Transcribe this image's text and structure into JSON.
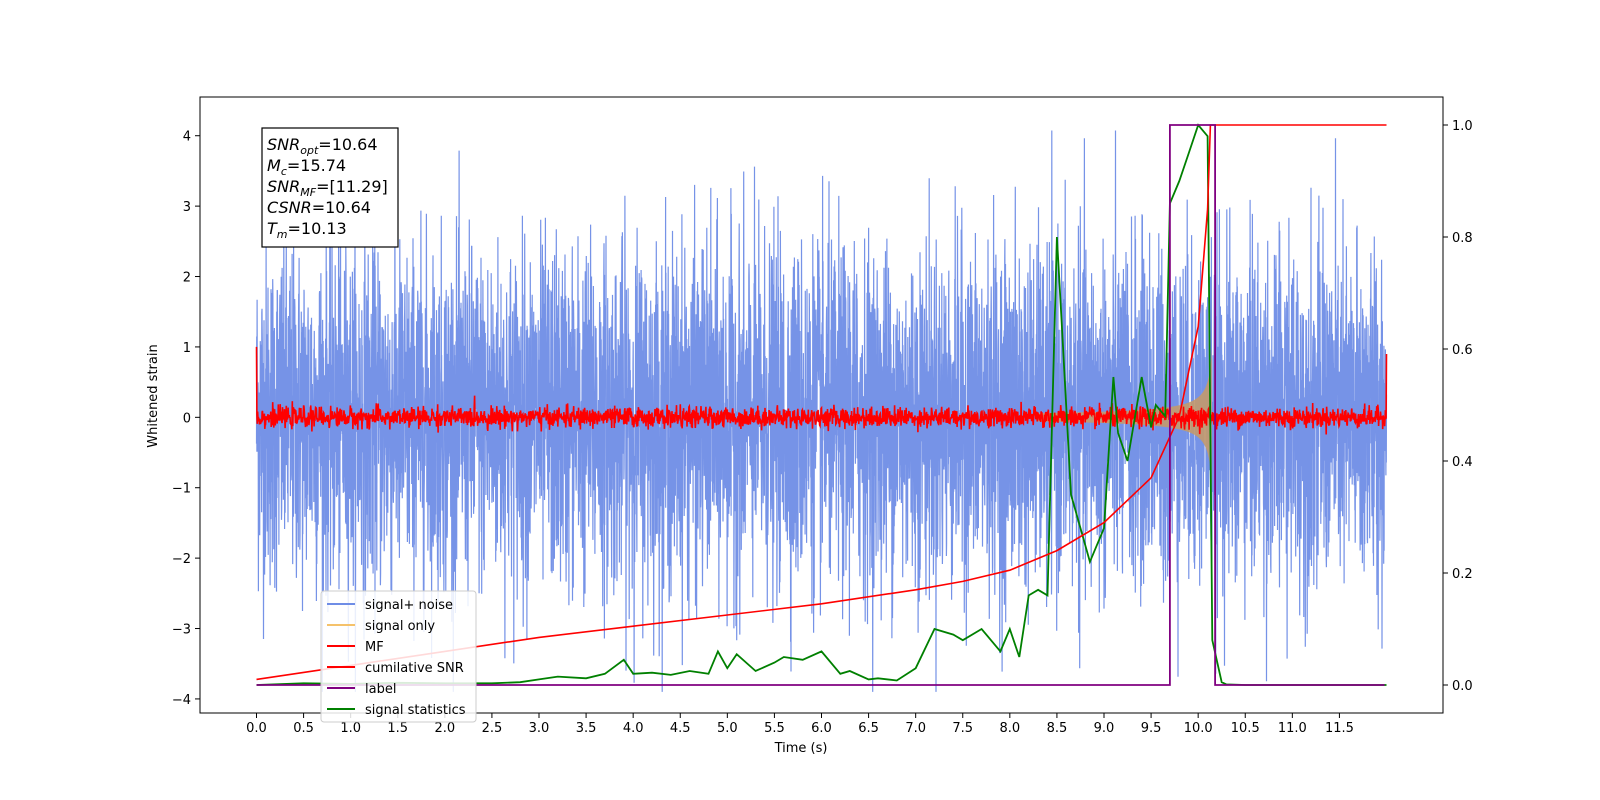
{
  "chart_data": {
    "type": "line",
    "title": "",
    "xlabel": "Time (s)",
    "ylabel": "Whitened strain",
    "xlim": [
      -0.6,
      12.6
    ],
    "ylim_left": [
      -4.2,
      4.55
    ],
    "ylim_right": [
      -0.05,
      1.05
    ],
    "xticks": [
      "0.0",
      "0.5",
      "1.0",
      "1.5",
      "2.0",
      "2.5",
      "3.0",
      "3.5",
      "4.0",
      "4.5",
      "5.0",
      "5.5",
      "6.0",
      "6.5",
      "7.0",
      "7.5",
      "8.0",
      "8.5",
      "9.0",
      "9.5",
      "10.0",
      "10.5",
      "11.0",
      "11.5"
    ],
    "yticks_left": [
      "4",
      "3",
      "2",
      "1",
      "0",
      "−1",
      "−2",
      "−3",
      "−4"
    ],
    "yticks_right": [
      "1.0",
      "0.8",
      "0.6",
      "0.4",
      "0.2",
      "0.0"
    ],
    "annotation": {
      "snr_opt": {
        "base": "SNR",
        "sub": "opt",
        "value": "=10.64"
      },
      "mc": {
        "base": "M",
        "sub": "c",
        "value": "=15.74"
      },
      "snr_mf": {
        "base": "SNR",
        "sub": "MF",
        "value": "=[11.29]"
      },
      "csnr": {
        "base": "CSNR",
        "sub": "",
        "value": "=10.64"
      },
      "tm": {
        "base": "T",
        "sub": "m",
        "value": "=10.13"
      }
    },
    "legend_position": "lower-left",
    "series": [
      {
        "name": "signal+ noise",
        "color": "#6f8de6",
        "axis": "left",
        "description_x_range": [
          0,
          12
        ],
        "amplitude_typical": 1.2,
        "peak_max": 4.2
      },
      {
        "name": "signal only",
        "color": "#f5c26b",
        "axis": "left",
        "chirp_end": 10.15
      },
      {
        "name": "MF",
        "color": "#ff0000",
        "axis": "left",
        "amplitude_typical": 0.12
      },
      {
        "name": "cumilative SNR",
        "color": "#ff0000",
        "axis": "right",
        "x": [
          0,
          1,
          2,
          3,
          4,
          5,
          6,
          7,
          7.5,
          8,
          8.5,
          9,
          9.5,
          9.8,
          10.0,
          10.1,
          10.13,
          12
        ],
        "y": [
          0.01,
          0.035,
          0.06,
          0.085,
          0.105,
          0.125,
          0.145,
          0.17,
          0.185,
          0.205,
          0.24,
          0.29,
          0.37,
          0.48,
          0.64,
          0.85,
          1.0,
          1.0
        ]
      },
      {
        "name": "label",
        "color": "#800080",
        "axis": "right",
        "x": [
          0,
          9.7,
          9.7,
          10.18,
          10.18,
          11.98
        ],
        "y": [
          0.0,
          0.0,
          1.0,
          1.0,
          0.0,
          0.0
        ]
      },
      {
        "name": "signal statistics",
        "color": "#008000",
        "axis": "right",
        "x": [
          0,
          0.5,
          1,
          1.5,
          2,
          2.5,
          2.8,
          3.0,
          3.2,
          3.5,
          3.7,
          3.9,
          4.0,
          4.2,
          4.4,
          4.6,
          4.8,
          4.9,
          5.0,
          5.1,
          5.3,
          5.5,
          5.6,
          5.8,
          6.0,
          6.2,
          6.3,
          6.5,
          6.6,
          6.8,
          7.0,
          7.2,
          7.4,
          7.5,
          7.7,
          7.9,
          8.0,
          8.1,
          8.2,
          8.3,
          8.4,
          8.5,
          8.55,
          8.65,
          8.75,
          8.85,
          9.0,
          9.1,
          9.15,
          9.25,
          9.4,
          9.5,
          9.55,
          9.65,
          9.7,
          9.8,
          9.9,
          10.0,
          10.1,
          10.15,
          10.25,
          10.3,
          10.5,
          11,
          12
        ],
        "y": [
          0.0,
          0.003,
          0.002,
          0.004,
          0.003,
          0.003,
          0.005,
          0.01,
          0.015,
          0.012,
          0.02,
          0.045,
          0.02,
          0.022,
          0.018,
          0.025,
          0.02,
          0.06,
          0.03,
          0.055,
          0.025,
          0.04,
          0.05,
          0.045,
          0.06,
          0.02,
          0.025,
          0.01,
          0.012,
          0.008,
          0.03,
          0.1,
          0.09,
          0.08,
          0.1,
          0.06,
          0.1,
          0.05,
          0.16,
          0.17,
          0.16,
          0.8,
          0.65,
          0.34,
          0.28,
          0.22,
          0.28,
          0.55,
          0.45,
          0.4,
          0.55,
          0.46,
          0.5,
          0.48,
          0.86,
          0.9,
          0.95,
          1.0,
          0.98,
          0.08,
          0.005,
          0.001,
          0.0,
          0.0,
          0.0
        ]
      }
    ]
  }
}
